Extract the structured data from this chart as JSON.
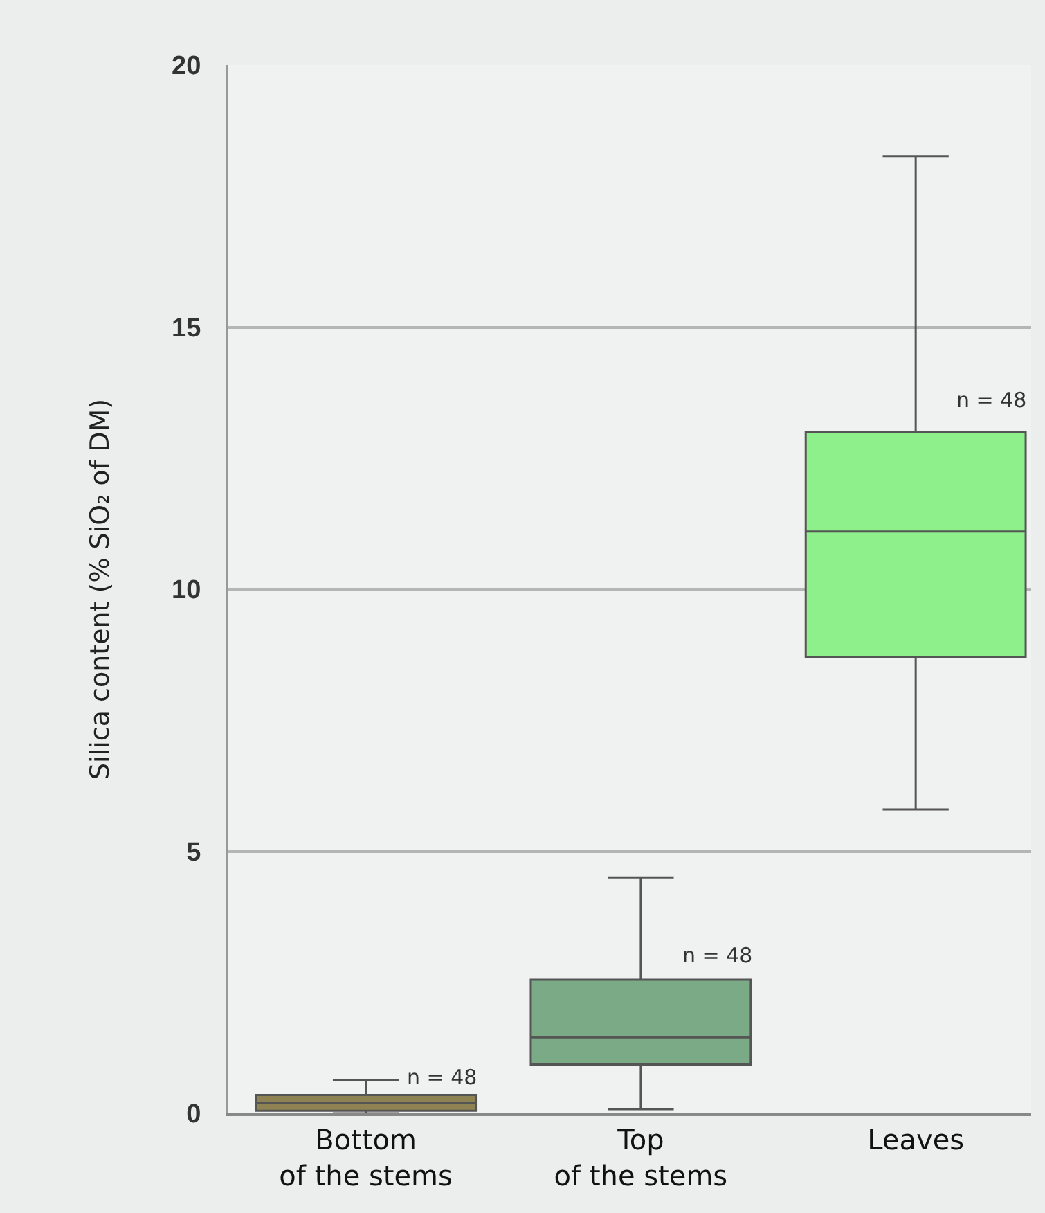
{
  "chart_data": {
    "type": "box",
    "ylabel": "Silica content (% SiO₂ of DM)",
    "categories": [
      "Bottom\nof the stems",
      "Top\nof the stems",
      "Leaves"
    ],
    "colors": [
      "#8f8253",
      "#7bab86",
      "#8ef08a"
    ],
    "boxes": [
      {
        "low": 0,
        "q1": 0.05,
        "median": 0.2,
        "q3": 0.35,
        "high": 0.63
      },
      {
        "low": 0.08,
        "q1": 0.93,
        "median": 1.45,
        "q3": 2.55,
        "high": 4.5
      },
      {
        "low": 5.8,
        "q1": 8.7,
        "median": 11.1,
        "q3": 13.0,
        "high": 18.26
      }
    ],
    "annotations": [
      {
        "text": "n = 48",
        "x": "Bottom\nof the stems",
        "y": 0.7
      },
      {
        "text": "n = 48",
        "x": "Top\nof the stems",
        "y": 3.0
      },
      {
        "text": "n = 48",
        "x": "Leaves",
        "y": 13.6
      }
    ],
    "ylim": [
      0,
      20
    ],
    "yticks": [
      0,
      5,
      10,
      15,
      20
    ],
    "grid": "y",
    "legend": false
  }
}
